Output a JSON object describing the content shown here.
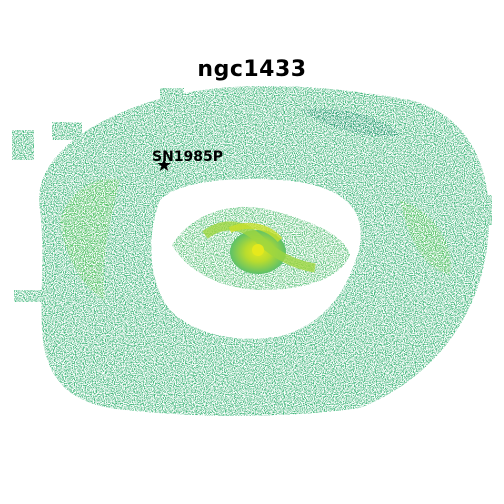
{
  "title": "ngc1433",
  "supernova": {
    "label": "SN1985P",
    "marker_icon": "star-icon"
  },
  "colors": {
    "background": "#ffffff",
    "outer_ring": "#3bb47a",
    "outer_ring_dark": "#2a9a72",
    "inner_bar": "#7fd05a",
    "nucleus": "#d8e21f"
  }
}
